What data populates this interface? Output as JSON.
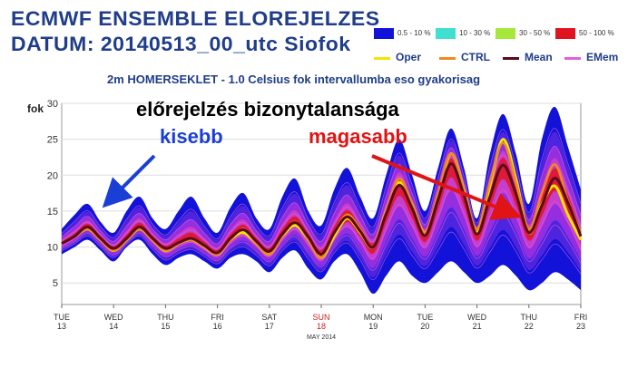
{
  "header": {
    "line1": "ECMWF ENSEMBLE ELOREJELZES",
    "line2": "DATUM: 20140513_00_utc  Siofok",
    "subtitle": "2m HOMERSEKLET - 1.0 Celsius fok intervallumba eso gyakorisag"
  },
  "legend": {
    "probability": [
      {
        "label": "0.5 - 10 %",
        "color": "#1212d8"
      },
      {
        "label": "10 - 30 %",
        "color": "#3fe0d0"
      },
      {
        "label": "30 - 50 %",
        "color": "#a6e83a"
      },
      {
        "label": "50 - 100 %",
        "color": "#e01420"
      }
    ],
    "lines": [
      {
        "label": "Oper",
        "color": "#f2e600"
      },
      {
        "label": "CTRL",
        "color": "#f08a1e"
      },
      {
        "label": "Mean",
        "color": "#5a0a1a"
      },
      {
        "label": "EMem",
        "color": "#e060e0"
      }
    ]
  },
  "annotations": {
    "main": "előrejelzés bizonytalansága",
    "left": "kisebb",
    "right": "magasabb"
  },
  "chart_data": {
    "type": "area",
    "ylabel": "fok",
    "ylim": [
      2,
      30
    ],
    "yticks": [
      5,
      10,
      15,
      20,
      25,
      30
    ],
    "x_ticks": [
      {
        "day": "TUE",
        "date": "13"
      },
      {
        "day": "WED",
        "date": "14"
      },
      {
        "day": "THU",
        "date": "15"
      },
      {
        "day": "FRI",
        "date": "16"
      },
      {
        "day": "SAT",
        "date": "17"
      },
      {
        "day": "SUN",
        "date": "18",
        "highlight": "#d42020"
      },
      {
        "day": "MON",
        "date": "19"
      },
      {
        "day": "TUE",
        "date": "20"
      },
      {
        "day": "WED",
        "date": "21"
      },
      {
        "day": "THU",
        "date": "22"
      },
      {
        "day": "FRI",
        "date": "23"
      }
    ],
    "x_footer": "MAY 2014",
    "x": [
      13,
      13.25,
      13.5,
      13.75,
      14,
      14.25,
      14.5,
      14.75,
      15,
      15.25,
      15.5,
      15.75,
      16,
      16.25,
      16.5,
      16.75,
      17,
      17.25,
      17.5,
      17.75,
      18,
      18.25,
      18.5,
      18.75,
      19,
      19.25,
      19.5,
      19.75,
      20,
      20.25,
      20.5,
      20.75,
      21,
      21.25,
      21.5,
      21.75,
      22,
      22.25,
      22.5,
      22.75,
      23
    ],
    "ensemble_min": [
      9,
      10,
      11,
      9.5,
      8,
      10,
      11,
      9,
      7.5,
      8.5,
      9,
      8,
      7,
      8.5,
      9,
      8,
      6.5,
      8.5,
      9.5,
      7,
      5.5,
      8,
      9,
      6.5,
      3.5,
      6,
      8,
      6,
      5,
      6.5,
      8,
      6.5,
      5,
      6,
      7.5,
      6,
      4,
      5,
      6.5,
      5.5,
      4
    ],
    "ensemble_max": [
      12.5,
      14.5,
      16,
      13.5,
      12,
      15,
      17,
      14,
      12.5,
      15,
      17,
      14,
      12,
      15.5,
      17.5,
      14,
      12.5,
      17,
      19.5,
      15,
      13,
      18,
      21,
      17,
      14,
      20,
      25,
      20,
      15,
      21,
      26.5,
      21,
      14,
      23,
      28.5,
      23,
      16,
      25,
      29.5,
      24,
      18
    ],
    "series": [
      {
        "name": "Oper",
        "color": "#f2e600",
        "values": [
          10.5,
          11.5,
          12.5,
          11,
          9.5,
          11,
          12.5,
          11,
          9.5,
          10.5,
          11,
          10,
          9,
          11,
          12,
          10.5,
          9,
          11.5,
          13,
          11,
          8.5,
          11.5,
          14,
          12,
          10,
          15,
          19,
          16,
          12,
          17,
          23,
          18,
          12,
          18.5,
          25,
          19.5,
          12,
          16,
          18.5,
          14.5,
          11
        ]
      },
      {
        "name": "CTRL",
        "color": "#f08a1e",
        "values": [
          10.5,
          11.5,
          12.5,
          11,
          9.5,
          11,
          12.5,
          11,
          9.5,
          10.5,
          11,
          10,
          9,
          11,
          12.5,
          10.5,
          9,
          11.5,
          13.5,
          11,
          8.5,
          12,
          14.5,
          12.5,
          10,
          15,
          19.5,
          16,
          12,
          17.5,
          23,
          18,
          12.5,
          19,
          24.5,
          19,
          12.5,
          17.5,
          21.5,
          16.5,
          12
        ]
      },
      {
        "name": "Mean",
        "color": "#5a0a1a",
        "values": [
          10.5,
          11.5,
          12.8,
          11.2,
          9.8,
          11.2,
          12.8,
          11.2,
          9.8,
          10.6,
          11.2,
          10.2,
          9.2,
          11.2,
          12.4,
          10.8,
          9.4,
          11.8,
          13.4,
          11.4,
          9,
          12,
          14.2,
          12.2,
          10,
          14.6,
          18.6,
          15.4,
          11.6,
          16.6,
          21.6,
          17.2,
          11.8,
          17,
          21.4,
          17.4,
          12,
          15.8,
          19.6,
          16.2,
          11.5
        ]
      }
    ]
  }
}
